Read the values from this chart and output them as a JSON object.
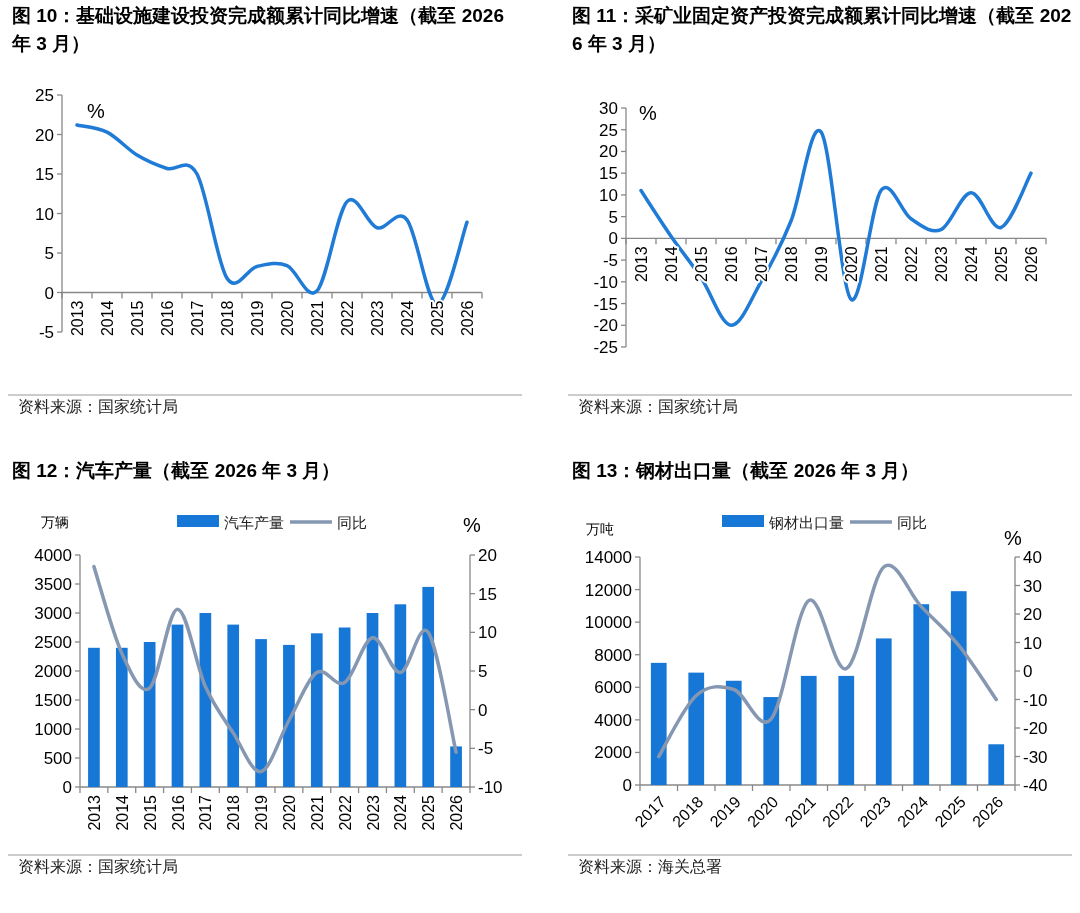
{
  "chart_data": [
    {
      "type": "line",
      "title": "图 10：基础设施建设投资完成额累计同比增速（截至 2026 年 3 月）",
      "ylabel": "%",
      "categories": [
        "2013",
        "2014",
        "2015",
        "2016",
        "2017",
        "2018",
        "2019",
        "2020",
        "2021",
        "2022",
        "2023",
        "2024",
        "2025",
        "2026"
      ],
      "values": [
        21.2,
        20.3,
        17.4,
        15.7,
        15.0,
        1.8,
        3.3,
        3.4,
        0.2,
        11.5,
        8.2,
        9.2,
        -1.5,
        8.9
      ],
      "color": "#1f7bd6",
      "ylim": [
        -5,
        25
      ],
      "yticks": [
        -5,
        0,
        5,
        10,
        15,
        20,
        25
      ],
      "annotations": [
        "资料来源：国家统计局"
      ]
    },
    {
      "type": "line",
      "title": "图 11：采矿业固定资产投资完成额累计同比增速（截至 2026 年 3 月）",
      "ylabel": "%",
      "categories": [
        "2013",
        "2014",
        "2015",
        "2016",
        "2017",
        "2018",
        "2019",
        "2020",
        "2021",
        "2022",
        "2023",
        "2024",
        "2025",
        "2026"
      ],
      "values": [
        11,
        0.5,
        -9,
        -20,
        -10,
        4,
        24.5,
        -14,
        11,
        4.5,
        2,
        10.5,
        2.5,
        15
      ],
      "color": "#1f7bd6",
      "ylim": [
        -25,
        30
      ],
      "yticks": [
        -25,
        -20,
        -15,
        -10,
        -5,
        0,
        5,
        10,
        15,
        20,
        25,
        30
      ],
      "annotations": [
        "资料来源：国家统计局"
      ]
    },
    {
      "type": "bar",
      "title": "图 12：汽车产量（截至 2026 年 3 月）",
      "ylabel": "万辆",
      "y2label": "%",
      "categories": [
        "2013",
        "2014",
        "2015",
        "2016",
        "2017",
        "2018",
        "2019",
        "2020",
        "2021",
        "2022",
        "2023",
        "2024",
        "2025",
        "2026"
      ],
      "series": [
        {
          "name": "汽车产量",
          "color": "#1677d6",
          "values": [
            2400,
            2400,
            2500,
            2800,
            3000,
            2800,
            2550,
            2450,
            2650,
            2750,
            3000,
            3150,
            3450,
            700
          ]
        },
        {
          "name": "同比",
          "type": "line",
          "axis": "y2",
          "color": "#8597b1",
          "values": [
            18.5,
            7.3,
            2.8,
            13,
            3,
            -3,
            -8,
            -1.4,
            4.8,
            3.5,
            9.3,
            4.8,
            10,
            -5.5
          ]
        }
      ],
      "ylim": [
        0,
        4000
      ],
      "yticks": [
        0,
        500,
        1000,
        1500,
        2000,
        2500,
        3000,
        3500,
        4000
      ],
      "y2lim": [
        -10,
        20
      ],
      "y2ticks": [
        -10,
        -5,
        0,
        5,
        10,
        15,
        20
      ],
      "legend": "top",
      "annotations": [
        "资料来源：国家统计局"
      ]
    },
    {
      "type": "bar",
      "title": "图 13：钢材出口量（截至 2026 年 3 月）",
      "ylabel": "万吨",
      "y2label": "%",
      "categories": [
        "2017",
        "2018",
        "2019",
        "2020",
        "2021",
        "2022",
        "2023",
        "2024",
        "2025",
        "2026"
      ],
      "series": [
        {
          "name": "钢材出口量",
          "color": "#1677d6",
          "values": [
            7500,
            6900,
            6400,
            5400,
            6700,
            6700,
            9000,
            11100,
            11900,
            2500
          ]
        },
        {
          "name": "同比",
          "type": "line",
          "axis": "y2",
          "color": "#8597b1",
          "values": [
            -30,
            -8.6,
            -6.5,
            -16.8,
            24.7,
            0.8,
            36.5,
            22.6,
            9,
            -10
          ]
        }
      ],
      "ylim": [
        0,
        14000
      ],
      "yticks": [
        0,
        2000,
        4000,
        6000,
        8000,
        10000,
        12000,
        14000
      ],
      "y2lim": [
        -40,
        40
      ],
      "y2ticks": [
        -40,
        -30,
        -20,
        -10,
        0,
        10,
        20,
        30,
        40
      ],
      "legend": "top",
      "annotations": [
        "资料来源：海关总署"
      ]
    }
  ]
}
